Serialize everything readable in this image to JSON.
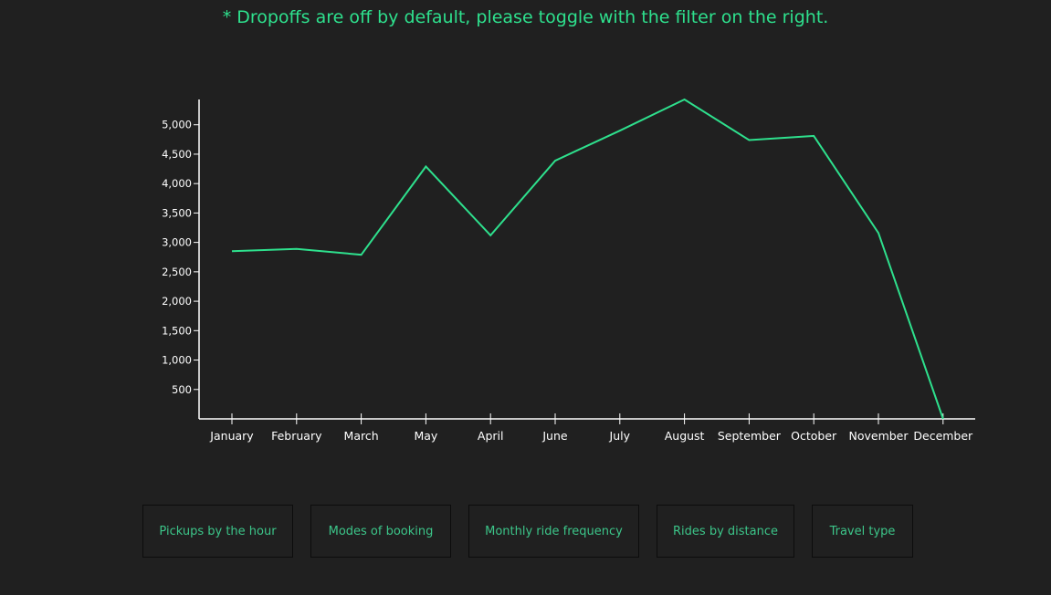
{
  "note": "* Dropoffs are off by default, please toggle with the filter on the right.",
  "colors": {
    "background": "#202020",
    "accent": "#2ee08d",
    "axis": "#ffffff",
    "button_text": "#3cc589",
    "button_border": "#0c0c0c"
  },
  "chart_data": {
    "type": "line",
    "categories": [
      "January",
      "February",
      "March",
      "May",
      "April",
      "June",
      "July",
      "August",
      "September",
      "October",
      "November",
      "December"
    ],
    "values": [
      2850,
      2890,
      2790,
      4290,
      3120,
      4390,
      4900,
      5430,
      4740,
      4810,
      3160,
      0
    ],
    "yticks": [
      500,
      1000,
      1500,
      2000,
      2500,
      3000,
      3500,
      4000,
      4500,
      5000
    ],
    "ytick_labels": [
      "500",
      "1,000",
      "1,500",
      "2,000",
      "2,500",
      "3,000",
      "3,500",
      "4,000",
      "4,500",
      "5,000"
    ],
    "ylim": [
      0,
      5430
    ],
    "grid": false,
    "title": "",
    "xlabel": "",
    "ylabel": ""
  },
  "buttons": [
    {
      "label": "Pickups by the hour"
    },
    {
      "label": "Modes of booking"
    },
    {
      "label": "Monthly ride frequency"
    },
    {
      "label": "Rides by distance"
    },
    {
      "label": "Travel type"
    }
  ]
}
